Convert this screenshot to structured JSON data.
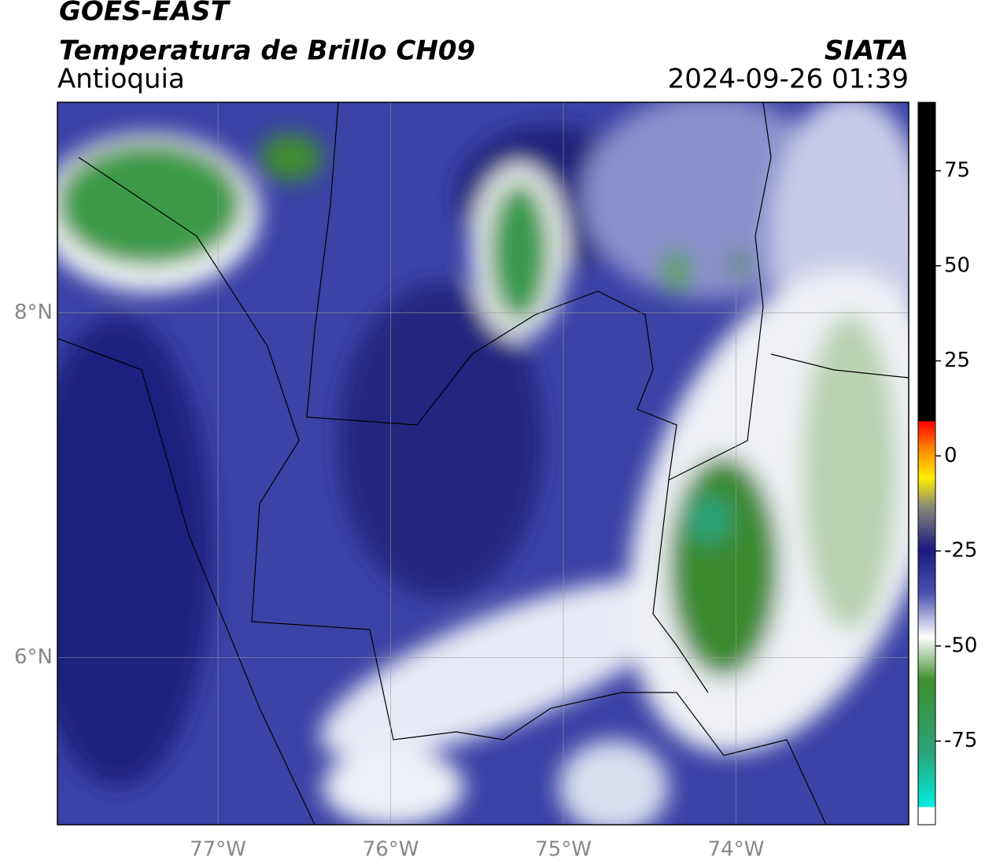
{
  "header": {
    "title": "GOES-EAST",
    "subtitle": "Temperatura de Brillo CH09",
    "region": "Antioquia",
    "source": "SIATA",
    "datetime": "2024-09-26 01:39"
  },
  "map": {
    "xlim": [
      -77.93,
      -73.0
    ],
    "ylim": [
      5.03,
      9.22
    ],
    "xticks": [
      {
        "value": -77,
        "label": "77°W"
      },
      {
        "value": -76,
        "label": "76°W"
      },
      {
        "value": -75,
        "label": "75°W"
      },
      {
        "value": -74,
        "label": "74°W"
      }
    ],
    "yticks": [
      {
        "value": 8,
        "label": "8°N"
      },
      {
        "value": 6,
        "label": "6°N"
      }
    ]
  },
  "colorbar": {
    "lim": [
      -97,
      93
    ],
    "ticks": [
      75,
      50,
      25,
      0,
      -25,
      -50,
      -75
    ]
  }
}
